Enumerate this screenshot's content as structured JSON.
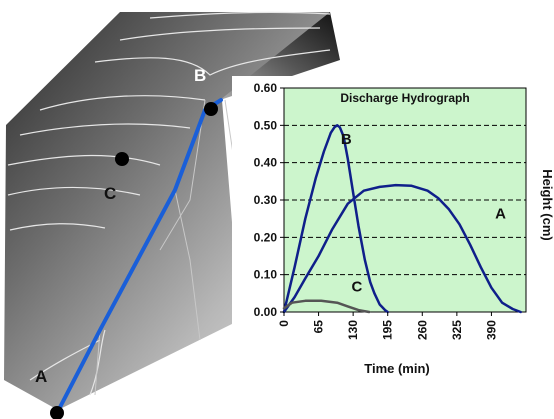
{
  "terrain": {
    "points": [
      {
        "id": "A",
        "label": "A"
      },
      {
        "id": "B",
        "label": "B"
      },
      {
        "id": "C",
        "label": "C"
      }
    ]
  },
  "chart_data": {
    "type": "line",
    "title": "Discharge Hydrograph",
    "xlabel": "Time (min)",
    "ylabel": "Height (cm)",
    "xlim": [
      0,
      455
    ],
    "ylim": [
      0,
      0.6
    ],
    "x_ticks": [
      0,
      65,
      130,
      195,
      260,
      325,
      390
    ],
    "y_ticks": [
      "0.00",
      "0.10",
      "0.20",
      "0.30",
      "0.40",
      "0.50",
      "0.60"
    ],
    "grid": "horizontal dashed",
    "background_color": "#ccf5cc",
    "series": [
      {
        "name": "B",
        "color": "#0f1f8a",
        "x": [
          0,
          20,
          40,
          60,
          75,
          88,
          95,
          100,
          105,
          112,
          120,
          130,
          140,
          152,
          162,
          170,
          180,
          190,
          195
        ],
        "y": [
          0,
          0.12,
          0.25,
          0.36,
          0.43,
          0.48,
          0.495,
          0.5,
          0.495,
          0.47,
          0.41,
          0.32,
          0.23,
          0.14,
          0.08,
          0.05,
          0.02,
          0.005,
          0
        ]
      },
      {
        "name": "A",
        "color": "#0f1f8a",
        "x": [
          0,
          20,
          40,
          65,
          90,
          120,
          150,
          180,
          210,
          240,
          270,
          290,
          310,
          330,
          350,
          370,
          390,
          410,
          430,
          445
        ],
        "y": [
          0,
          0.04,
          0.09,
          0.15,
          0.22,
          0.29,
          0.325,
          0.335,
          0.34,
          0.338,
          0.325,
          0.305,
          0.275,
          0.235,
          0.18,
          0.12,
          0.065,
          0.025,
          0.008,
          0
        ]
      },
      {
        "name": "C",
        "color": "#555555",
        "x": [
          0,
          15,
          40,
          70,
          100,
          120,
          140,
          160
        ],
        "y": [
          0.01,
          0.025,
          0.03,
          0.03,
          0.025,
          0.015,
          0.005,
          0
        ]
      }
    ]
  }
}
